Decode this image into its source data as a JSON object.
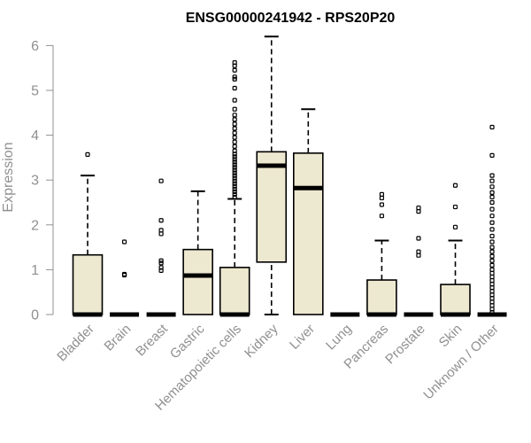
{
  "chart_data": {
    "type": "boxplot",
    "title": "ENSG00000241942 - RPS20P20",
    "ylabel": "Expression",
    "ylim": [
      0,
      6.2
    ],
    "yticks": [
      0,
      1,
      2,
      3,
      4,
      5,
      6
    ],
    "box_fill": "#ede8d0",
    "categories": [
      "Bladder",
      "Brain",
      "Breast",
      "Gastric",
      "Hematopoietic cells",
      "Kidney",
      "Liver",
      "Lung",
      "Pancreas",
      "Prostate",
      "Skin",
      "Unknown / Other"
    ],
    "boxes": [
      {
        "q1": 0,
        "median": 0,
        "q3": 1.33,
        "whisker_low": 0,
        "whisker_high": 3.1,
        "outliers": [
          3.57
        ]
      },
      {
        "q1": 0,
        "median": 0,
        "q3": 0,
        "whisker_low": 0,
        "whisker_high": 0,
        "outliers": [
          0.88,
          0.9,
          1.62
        ]
      },
      {
        "q1": 0,
        "median": 0,
        "q3": 0,
        "whisker_low": 0,
        "whisker_high": 0,
        "outliers": [
          0.98,
          1.05,
          1.15,
          1.2,
          1.8,
          1.88,
          2.1,
          2.98
        ]
      },
      {
        "q1": 0,
        "median": 0.87,
        "q3": 1.45,
        "whisker_low": 0,
        "whisker_high": 2.75,
        "outliers": []
      },
      {
        "q1": 0,
        "median": 0,
        "q3": 1.05,
        "whisker_low": 0,
        "whisker_high": 2.58,
        "outliers": [
          2.62,
          2.68,
          2.74,
          2.8,
          2.86,
          2.92,
          2.98,
          3.04,
          3.1,
          3.16,
          3.22,
          3.28,
          3.34,
          3.4,
          3.46,
          3.52,
          3.58,
          3.65,
          3.75,
          3.85,
          3.95,
          4.05,
          4.15,
          4.25,
          4.35,
          4.45,
          4.58,
          4.78,
          5.05,
          5.25,
          5.3,
          5.45,
          5.55,
          5.62
        ]
      },
      {
        "q1": 1.17,
        "median": 3.32,
        "q3": 3.63,
        "whisker_low": 0,
        "whisker_high": 6.2,
        "outliers": []
      },
      {
        "q1": 0,
        "median": 2.82,
        "q3": 3.6,
        "whisker_low": 0,
        "whisker_high": 4.58,
        "outliers": []
      },
      {
        "q1": 0,
        "median": 0,
        "q3": 0,
        "whisker_low": 0,
        "whisker_high": 0,
        "outliers": []
      },
      {
        "q1": 0,
        "median": 0,
        "q3": 0.77,
        "whisker_low": 0,
        "whisker_high": 1.65,
        "outliers": [
          2.2,
          2.45,
          2.6,
          2.68
        ]
      },
      {
        "q1": 0,
        "median": 0,
        "q3": 0,
        "whisker_low": 0,
        "whisker_high": 0,
        "outliers": [
          1.32,
          1.4,
          1.7,
          2.3,
          2.38
        ]
      },
      {
        "q1": 0,
        "median": 0,
        "q3": 0.67,
        "whisker_low": 0,
        "whisker_high": 1.65,
        "outliers": [
          1.95,
          2.4,
          2.88
        ]
      },
      {
        "q1": 0,
        "median": 0,
        "q3": 0,
        "whisker_low": 0,
        "whisker_high": 0,
        "outliers": [
          0.05,
          0.12,
          0.2,
          0.28,
          0.36,
          0.44,
          0.52,
          0.6,
          0.68,
          0.76,
          0.84,
          0.92,
          1.0,
          1.1,
          1.2,
          1.3,
          1.4,
          1.5,
          1.62,
          1.75,
          1.9,
          2.05,
          2.2,
          2.35,
          2.5,
          2.62,
          2.72,
          2.85,
          2.98,
          3.1,
          3.55,
          4.18
        ]
      }
    ]
  }
}
